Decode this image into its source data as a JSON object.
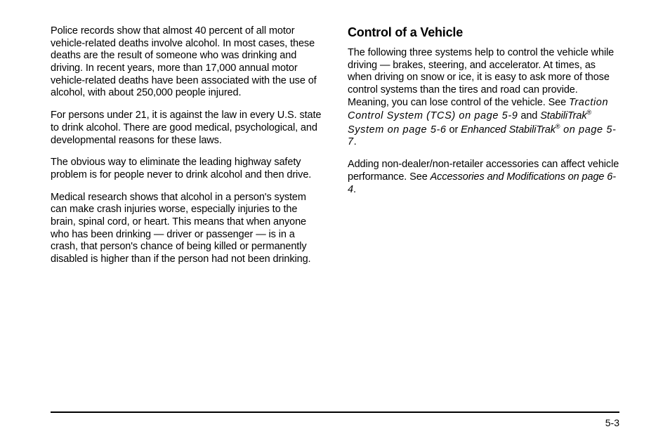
{
  "left": {
    "p1": "Police records show that almost 40 percent of all motor vehicle-related deaths involve alcohol. In most cases, these deaths are the result of someone who was drinking and driving. In recent years, more than 17,000 annual motor vehicle-related deaths have been associated with the use of alcohol, with about 250,000 people injured.",
    "p2": "For persons under 21, it is against the law in every U.S. state to drink alcohol. There are good medical, psychological, and developmental reasons for these laws.",
    "p3": "The obvious way to eliminate the leading highway safety problem is for people never to drink alcohol and then drive.",
    "p4": "Medical research shows that alcohol in a person's system can make crash injuries worse, especially injuries to the brain, spinal cord, or heart. This means that when anyone who has been drinking — driver or passenger — is in a crash, that person's chance of being killed or permanently disabled is higher than if the person had not been drinking."
  },
  "right": {
    "heading": "Control of a Vehicle",
    "p1a": "The following three systems help to control the vehicle while driving — brakes, steering, and accelerator. At times, as when driving on snow or ice, it is easy to ask more of those control systems than the tires and road can provide. Meaning, you can lose control of the vehicle. See ",
    "ref1": "Traction Control System (TCS) on page 5-9",
    "p1b": " and ",
    "ref2a": "StabiliTrak",
    "reg": "®",
    "ref2b": " System on page 5-6",
    "p1c": " or ",
    "ref3a": "Enhanced StabiliTrak",
    "ref3b": " on page 5-7",
    "p1d": ".",
    "p2a": "Adding non-dealer/non-retailer accessories can affect vehicle performance. See ",
    "ref4": "Accessories and Modifications on page 6-4",
    "p2b": "."
  },
  "page_number": "5-3"
}
